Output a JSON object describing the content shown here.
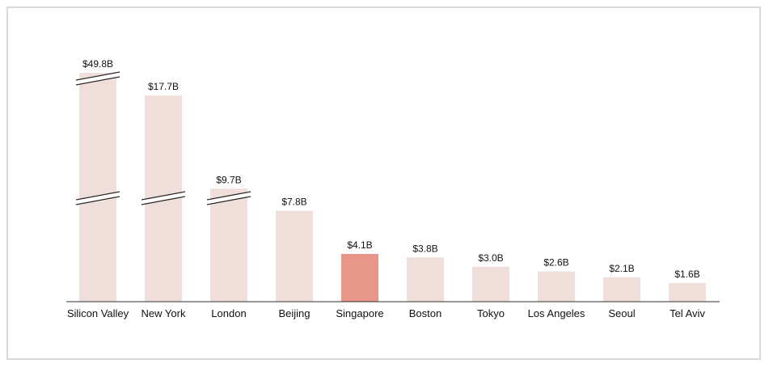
{
  "chart_data": {
    "type": "bar",
    "categories": [
      "Silicon Valley",
      "New York",
      "London",
      "Beijing",
      "Singapore",
      "Boston",
      "Tokyo",
      "Los Angeles",
      "Seoul",
      "Tel Aviv"
    ],
    "values": [
      49.8,
      17.7,
      9.7,
      7.8,
      4.1,
      3.8,
      3.0,
      2.6,
      2.1,
      1.6
    ],
    "value_labels": [
      "$49.8B",
      "$17.7B",
      "$9.7B",
      "$7.8B",
      "$4.1B",
      "$3.8B",
      "$3.0B",
      "$2.6B",
      "$2.1B",
      "$1.6B"
    ],
    "colors": [
      "#efdeda",
      "#efdeda",
      "#efdeda",
      "#efdeda",
      "#e8968a",
      "#efdeda",
      "#efdeda",
      "#efdeda",
      "#efdeda",
      "#efdeda"
    ]
  }
}
